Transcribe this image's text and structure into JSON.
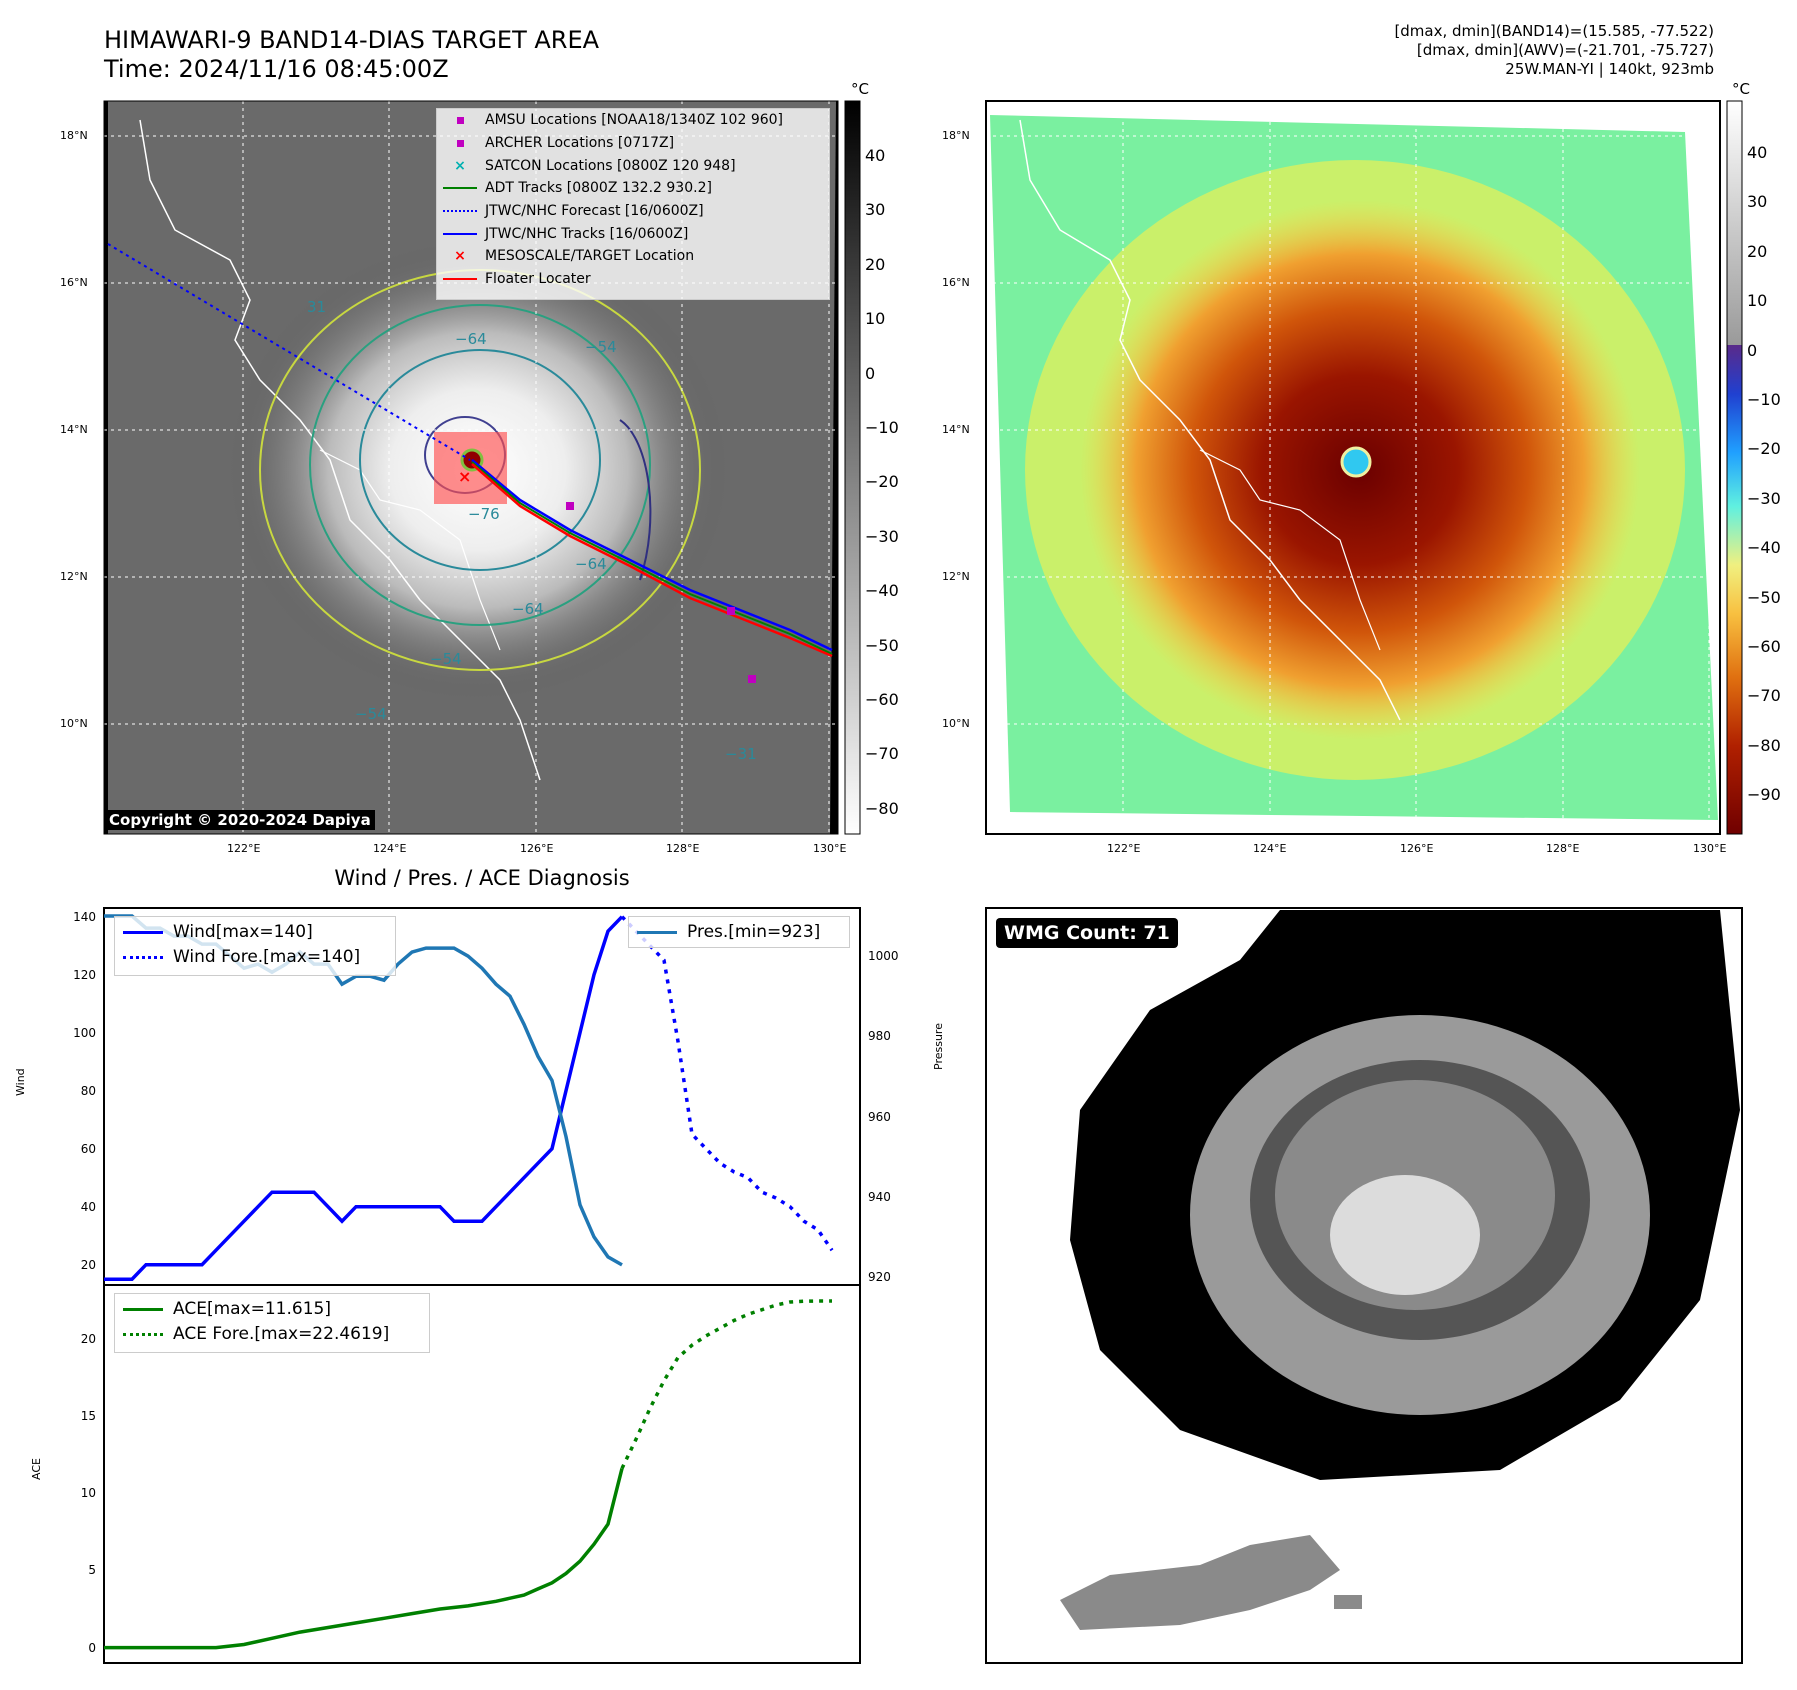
{
  "header": {
    "title_line1": "HIMAWARI-9 BAND14-DIAS TARGET AREA",
    "title_line2": "Time: 2024/11/16 08:45:00Z",
    "meta_line1": "[dmax, dmin](BAND14)=(15.585, -77.522)",
    "meta_line2": "[dmax, dmin](AWV)=(-21.701, -75.727)",
    "meta_line3": "25W.MAN-YI | 140kt, 923mb"
  },
  "panel_ir": {
    "copyright": "Copyright © 2020-2024 Dapiya",
    "unit": "°C",
    "lat_labels": [
      "18°N",
      "16°N",
      "14°N",
      "12°N",
      "10°N"
    ],
    "lon_labels": [
      "122°E",
      "124°E",
      "126°E",
      "128°E",
      "130°E"
    ],
    "colorbar_ticks": [
      "40",
      "30",
      "20",
      "10",
      "0",
      "−10",
      "−20",
      "−30",
      "−40",
      "−50",
      "−60",
      "−70",
      "−80"
    ],
    "contour_labels": [
      "31",
      "−64",
      "−54",
      "−76",
      "−64",
      "−54",
      "−64",
      "−54",
      "−31"
    ],
    "legend": [
      {
        "label": "AMSU Locations [NOAA18/1340Z 102 960]",
        "color": "#c000c0",
        "marker": "square"
      },
      {
        "label": "ARCHER Locations [0717Z]",
        "color": "#c000c0",
        "marker": "square"
      },
      {
        "label": "SATCON Locations [0800Z 120 948]",
        "color": "#00b0b0",
        "marker": "x"
      },
      {
        "label": "ADT Tracks [0800Z 132.2 930.2]",
        "color": "#008000",
        "marker": "line"
      },
      {
        "label": "JTWC/NHC Forecast [16/0600Z]",
        "color": "#0000ff",
        "marker": "dotted"
      },
      {
        "label": "JTWC/NHC Tracks [16/0600Z]",
        "color": "#0000ff",
        "marker": "line-dot"
      },
      {
        "label": "MESOSCALE/TARGET Location",
        "color": "#ff0000",
        "marker": "x"
      },
      {
        "label": "Floater Locater",
        "color": "#ff0000",
        "marker": "line"
      }
    ]
  },
  "panel_awv": {
    "unit": "°C",
    "lat_labels": [
      "18°N",
      "16°N",
      "14°N",
      "12°N",
      "10°N"
    ],
    "lon_labels": [
      "122°E",
      "124°E",
      "126°E",
      "128°E",
      "130°E"
    ],
    "colorbar_ticks": [
      "40",
      "30",
      "20",
      "10",
      "0",
      "−10",
      "−20",
      "−30",
      "−40",
      "−50",
      "−60",
      "−70",
      "−80",
      "−90"
    ]
  },
  "panel_wmg": {
    "badge": "WMG Count: 71"
  },
  "chart_data": [
    {
      "type": "line",
      "title": "Wind / Pres. / ACE Diagnosis",
      "ylabel": "Wind",
      "y2label": "Pressure",
      "ylim": [
        13,
        143
      ],
      "y2lim": [
        918,
        1012
      ],
      "xlim": [
        0,
        54
      ],
      "yticks": [
        20,
        40,
        60,
        80,
        100,
        120,
        140
      ],
      "y2ticks": [
        920,
        940,
        960,
        980,
        1000
      ],
      "series": [
        {
          "name": "Wind[max=140]",
          "color": "#0000ff",
          "style": "solid",
          "x": [
            0,
            2,
            3,
            4,
            5,
            6,
            7,
            8,
            9,
            10,
            11,
            12,
            13,
            14,
            15,
            16,
            17,
            18,
            19,
            20,
            21,
            22,
            23,
            24,
            25,
            26,
            27,
            28,
            29,
            30,
            31,
            32,
            33,
            34,
            35,
            36,
            37
          ],
          "values": [
            15,
            15,
            20,
            20,
            20,
            20,
            20,
            25,
            30,
            35,
            40,
            45,
            45,
            45,
            45,
            40,
            35,
            40,
            40,
            40,
            40,
            40,
            40,
            40,
            35,
            35,
            35,
            40,
            45,
            50,
            55,
            60,
            80,
            100,
            120,
            135,
            140
          ]
        },
        {
          "name": "Wind Fore.[max=140]",
          "color": "#0000ff",
          "style": "dotted",
          "x": [
            37,
            38,
            40,
            41,
            42,
            43,
            44,
            45,
            46,
            47,
            48,
            49,
            50,
            51,
            52
          ],
          "values": [
            140,
            135,
            125,
            97,
            65,
            60,
            55,
            52,
            50,
            45,
            43,
            40,
            35,
            32,
            25
          ]
        },
        {
          "name": "Pres.[min=923]",
          "color": "#1f77b4",
          "style": "solid",
          "axis": "right",
          "x": [
            0,
            2,
            3,
            4,
            5,
            6,
            7,
            8,
            9,
            10,
            11,
            12,
            13,
            14,
            15,
            16,
            17,
            18,
            19,
            20,
            21,
            22,
            23,
            24,
            25,
            26,
            27,
            28,
            29,
            30,
            31,
            32,
            33,
            34,
            35,
            36,
            37
          ],
          "values": [
            1010,
            1010,
            1007,
            1007,
            1005,
            1005,
            1003,
            1003,
            1000,
            997,
            998,
            996,
            998,
            1001,
            998,
            998,
            993,
            995,
            995,
            994,
            998,
            1001,
            1002,
            1002,
            1002,
            1000,
            997,
            993,
            990,
            983,
            975,
            969,
            955,
            938,
            930,
            925,
            923
          ]
        }
      ]
    },
    {
      "type": "line",
      "ylabel": "ACE",
      "ylim": [
        -1,
        23.5
      ],
      "xlim": [
        0,
        54
      ],
      "yticks": [
        0,
        5,
        10,
        15,
        20
      ],
      "series": [
        {
          "name": "ACE[max=11.615]",
          "color": "#008000",
          "style": "solid",
          "x": [
            0,
            2,
            4,
            6,
            8,
            10,
            12,
            14,
            16,
            18,
            20,
            22,
            24,
            26,
            28,
            30,
            31,
            32,
            33,
            34,
            35,
            36,
            37
          ],
          "values": [
            0,
            0,
            0,
            0,
            0,
            0.2,
            0.6,
            1.0,
            1.3,
            1.6,
            1.9,
            2.2,
            2.5,
            2.7,
            3.0,
            3.4,
            3.8,
            4.2,
            4.8,
            5.6,
            6.7,
            8.0,
            11.615
          ]
        },
        {
          "name": "ACE Fore.[max=22.4619]",
          "color": "#008000",
          "style": "dotted",
          "x": [
            37,
            38,
            39,
            40,
            41,
            42,
            43,
            44,
            45,
            46,
            47,
            48,
            49,
            50,
            51,
            52
          ],
          "values": [
            11.615,
            13.5,
            15.5,
            17.3,
            18.8,
            19.6,
            20.2,
            20.7,
            21.2,
            21.6,
            21.9,
            22.2,
            22.4,
            22.45,
            22.46,
            22.4619
          ]
        }
      ]
    }
  ]
}
